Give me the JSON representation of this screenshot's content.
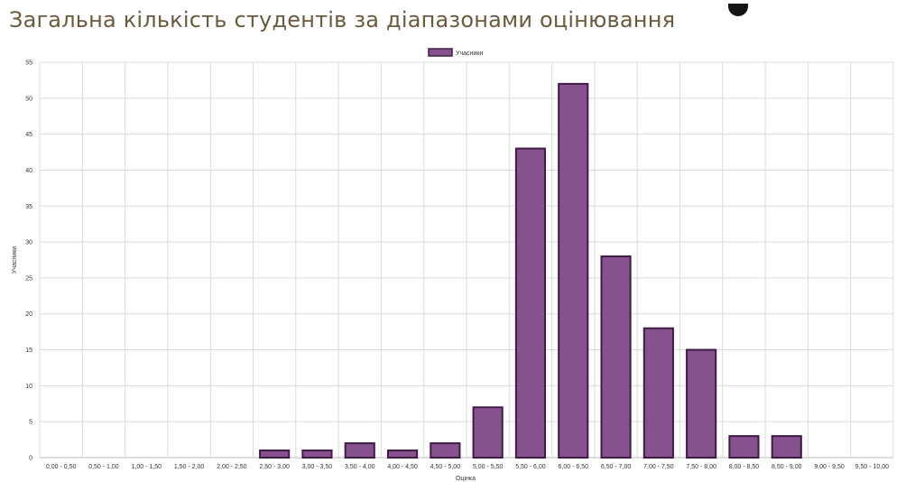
{
  "page": {
    "title": "Загальна кількість студентів за діапазонами оцінювання"
  },
  "chart_data": {
    "type": "bar",
    "categories": [
      "0,00 - 0,50",
      "0,50 - 1,00",
      "1,00 - 1,50",
      "1,50 - 2,00",
      "2,00 - 2,50",
      "2,50 - 3,00",
      "3,00 - 3,50",
      "3,50 - 4,00",
      "4,00 - 4,50",
      "4,50 - 5,00",
      "5,00 - 5,50",
      "5,50 - 6,00",
      "6,00 - 6,50",
      "6,50 - 7,00",
      "7,00 - 7,50",
      "7,50 - 8,00",
      "8,00 - 8,50",
      "8,50 - 9,00",
      "9,00 - 9,50",
      "9,50 - 10,00"
    ],
    "series": [
      {
        "name": "Учасники",
        "values": [
          0,
          0,
          0,
          0,
          0,
          1,
          1,
          2,
          1,
          2,
          7,
          43,
          52,
          28,
          18,
          15,
          3,
          3,
          0,
          0
        ]
      }
    ],
    "xlabel": "Оцінка",
    "ylabel": "Учасники",
    "ylim": [
      0,
      55
    ],
    "yticks": [
      0,
      5,
      10,
      15,
      20,
      25,
      30,
      35,
      40,
      45,
      50,
      55
    ],
    "grid": true,
    "legend": "top-center",
    "colors": {
      "bar_fill": "#87508f",
      "bar_stroke": "#3f1c45",
      "grid": "#dcdcdc"
    }
  }
}
